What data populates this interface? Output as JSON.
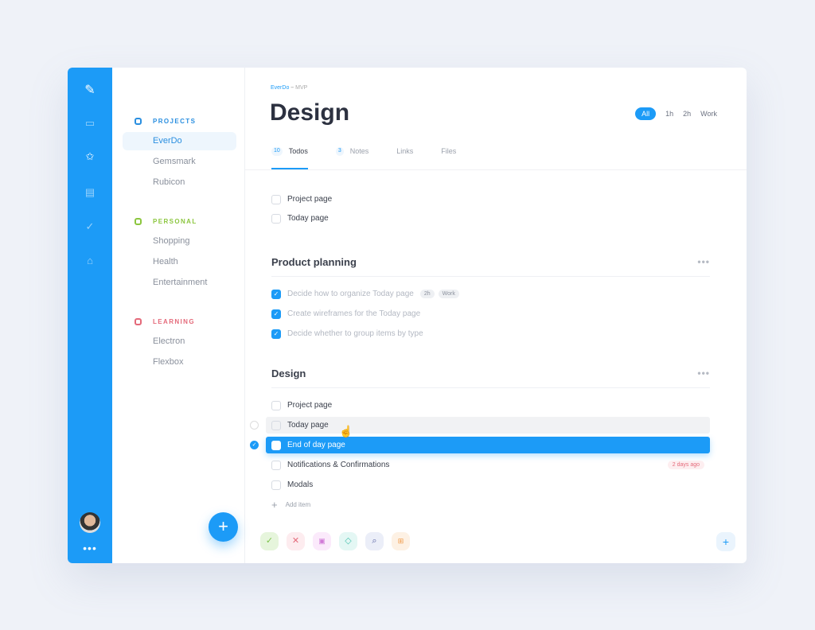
{
  "colors": {
    "accent": "#1c9bf7",
    "projects": "#2a8fe0",
    "personal": "#8cc63f",
    "learning": "#e46a7a"
  },
  "rail": {
    "icons": [
      "logo-pen-icon",
      "inbox-icon",
      "star-icon",
      "calendar-icon",
      "check-icon",
      "trash-icon"
    ],
    "more": "•••"
  },
  "sidebar": {
    "groups": [
      {
        "label": "PROJECTS",
        "items": [
          "EverDo",
          "Gemsmark",
          "Rubicon"
        ]
      },
      {
        "label": "PERSONAL",
        "items": [
          "Shopping",
          "Health",
          "Entertainment"
        ]
      },
      {
        "label": "LEARNING",
        "items": [
          "Electron",
          "Flexbox"
        ]
      }
    ],
    "active": "EverDo",
    "add": "+"
  },
  "header": {
    "crumb_project": "EverDo",
    "crumb_sep": "–",
    "crumb_page": "MVP",
    "title": "Design",
    "filters": [
      "All",
      "1h",
      "2h",
      "Work"
    ],
    "tabs": [
      {
        "count": "10",
        "label": "Todos"
      },
      {
        "count": "3",
        "label": "Notes"
      },
      {
        "count": "",
        "label": "Links"
      },
      {
        "count": "",
        "label": "Files"
      }
    ]
  },
  "todos": {
    "loose": [
      "Project page",
      "Today page"
    ],
    "sections": [
      {
        "title": "Product planning",
        "more": "•••",
        "items": [
          {
            "text": "Decide how to organize Today page",
            "done": true,
            "tags": [
              "2h",
              "Work"
            ]
          },
          {
            "text": "Create wireframes for the Today page",
            "done": true
          },
          {
            "text": "Decide whether to group items by type",
            "done": true
          }
        ]
      },
      {
        "title": "Design",
        "more": "•••",
        "items": [
          {
            "text": "Project page"
          },
          {
            "text": "Today page",
            "state": "hover"
          },
          {
            "text": "End of day page",
            "state": "selected"
          },
          {
            "text": "Notifications & Confirmations",
            "badge": "2 days ago"
          },
          {
            "text": "Modals"
          }
        ]
      }
    ],
    "add_item": "Add item"
  },
  "toolbar": {
    "buttons": [
      "complete",
      "delete",
      "schedule",
      "tag",
      "search",
      "move"
    ],
    "add": "+"
  }
}
